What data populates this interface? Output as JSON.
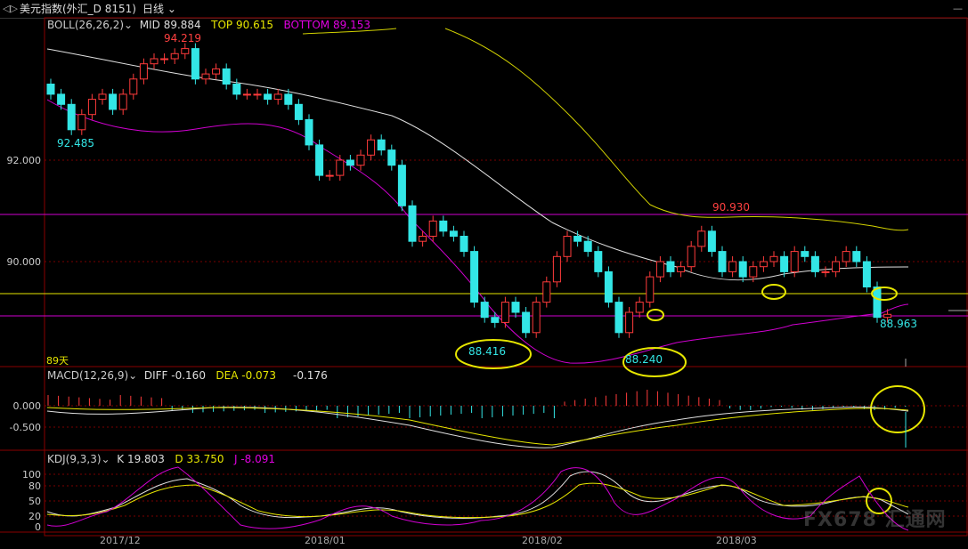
{
  "titlebar": {
    "back_icon": "◁▷",
    "symbol": "美元指数(外汇_D 8151)",
    "period": "日线",
    "dropdown_icon": "chevron-down-icon",
    "corner": "—"
  },
  "boll": {
    "name": "BOLL(26,26,2)",
    "mid_label": "MID",
    "mid_value": "89.884",
    "top_label": "TOP",
    "top_value": "90.615",
    "bottom_label": "BOTTOM",
    "bottom_value": "89.153"
  },
  "price_axis": {
    "labels": [
      "92.000",
      "90.000"
    ]
  },
  "annotations": {
    "high1": "94.219",
    "low1": "92.485",
    "high2": "90.930",
    "low2": "88.416",
    "low3": "88.240",
    "last": "88.963",
    "days": "89天"
  },
  "macd": {
    "name": "MACD(12,26,9)",
    "diff_label": "DIFF",
    "diff_value": "-0.160",
    "dea_label": "DEA",
    "dea_value": "-0.073",
    "macd_value": "-0.176",
    "axis": [
      "0.000",
      "-0.500"
    ]
  },
  "kdj": {
    "name": "KDJ(9,3,3)",
    "k_label": "K",
    "k_value": "19.803",
    "d_label": "D",
    "d_value": "33.750",
    "j_label": "J",
    "j_value": "-8.091",
    "axis": [
      "100",
      "80",
      "50",
      "20",
      "0"
    ]
  },
  "x_axis": {
    "labels": [
      "2017/12",
      "2018/01",
      "2018/02",
      "2018/03"
    ]
  },
  "watermark": "FX678 汇通网",
  "colors": {
    "up": "#ff3b3b",
    "down": "#33e6e6",
    "mid": "#e0e0e0",
    "top": "#e6e600",
    "bottom": "#e000e0",
    "grid": "#7a0000"
  },
  "chart_data": {
    "type": "candlestick",
    "closes": [
      93.3,
      93.1,
      92.6,
      92.9,
      93.2,
      93.3,
      93.0,
      93.3,
      93.6,
      93.9,
      94.0,
      94.0,
      94.1,
      94.2,
      93.6,
      93.7,
      93.8,
      93.5,
      93.3,
      93.3,
      93.3,
      93.2,
      93.3,
      93.1,
      92.8,
      92.3,
      91.7,
      91.7,
      92.0,
      91.9,
      92.1,
      92.4,
      92.2,
      91.9,
      91.1,
      90.4,
      90.5,
      90.8,
      90.6,
      90.5,
      90.2,
      89.2,
      88.9,
      88.8,
      89.2,
      89.0,
      88.6,
      89.2,
      89.6,
      90.1,
      90.5,
      90.4,
      90.2,
      89.8,
      89.2,
      88.6,
      89.0,
      89.2,
      89.7,
      90.0,
      89.8,
      89.9,
      90.3,
      90.6,
      90.2,
      89.8,
      90.0,
      89.7,
      89.9,
      90.0,
      90.1,
      89.8,
      90.2,
      90.1,
      89.8,
      89.8,
      90.0,
      90.2,
      90.0,
      89.5,
      88.9,
      88.96
    ]
  }
}
